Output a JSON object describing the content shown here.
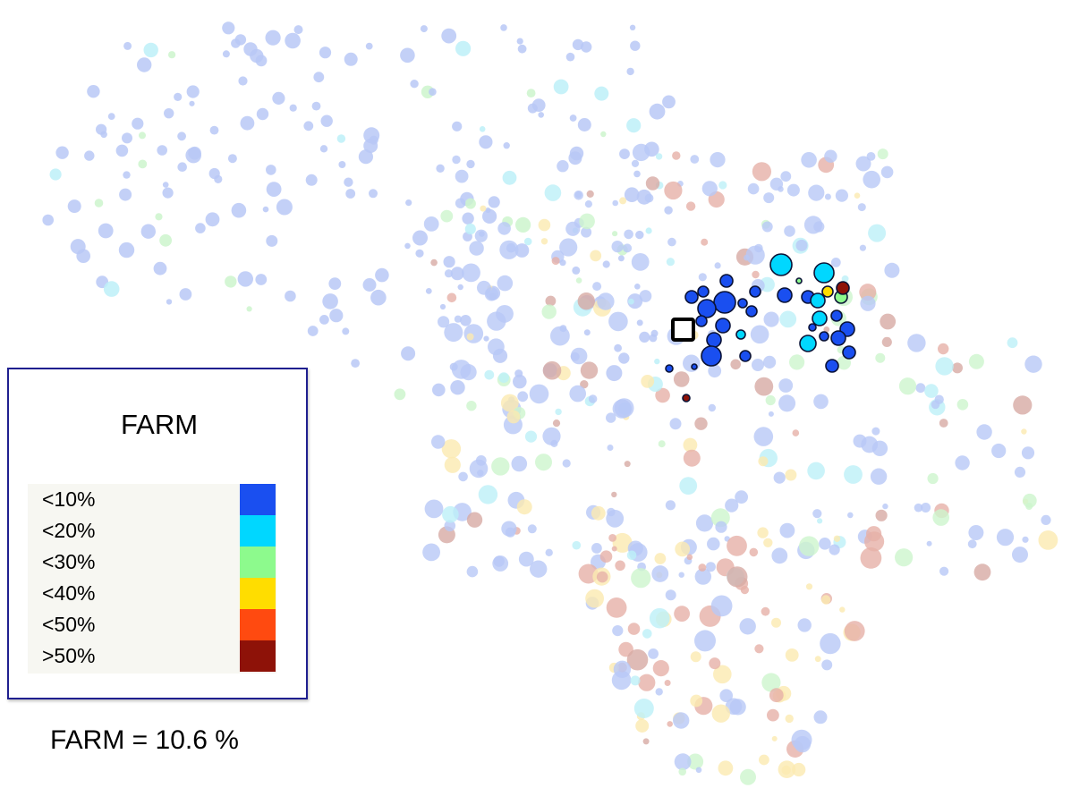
{
  "legend": {
    "title": "FARM",
    "items": [
      {
        "label": "<10%",
        "color": "#1a4ff0"
      },
      {
        "label": "<20%",
        "color": "#00d7ff"
      },
      {
        "label": "<30%",
        "color": "#8dfa8d"
      },
      {
        "label": "<40%",
        "color": "#ffdd00"
      },
      {
        "label": "<50%",
        "color": "#ff4a10"
      },
      {
        "label": ">50%",
        "color": "#8e1208"
      }
    ]
  },
  "summary": {
    "text": "FARM = 10.6 %"
  },
  "colors": {
    "legend_border": "#1f1f8f",
    "highlight_outline": "#000000"
  }
}
